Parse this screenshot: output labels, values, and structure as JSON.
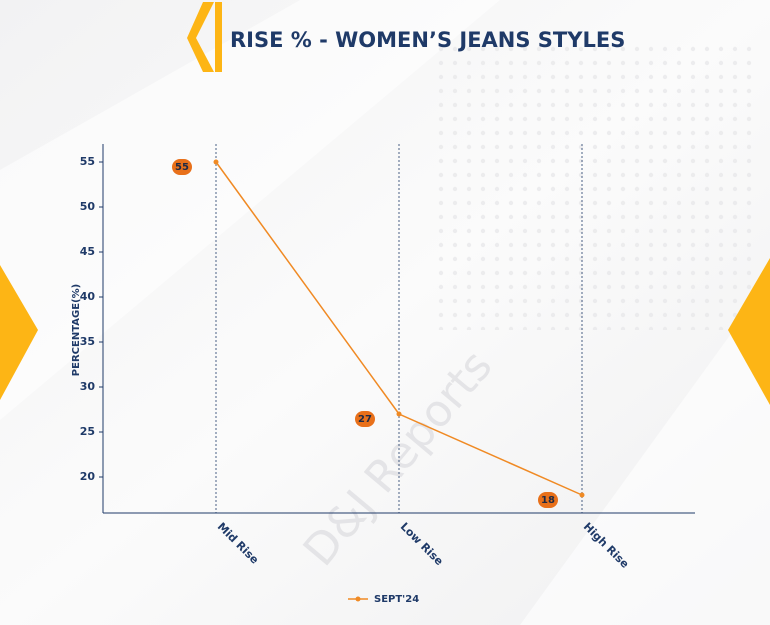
{
  "chart_data": {
    "type": "line",
    "title": "RISE % - WOMEN’S JEANS STYLES",
    "y_label": "PERCENTAGE(%)",
    "watermark": "D&J Reports",
    "categories": [
      "Mid Rise",
      "Low Rise",
      "High Rise"
    ],
    "series": [
      {
        "name": "SEPT'24",
        "color": "#f08a24",
        "values": [
          55,
          27,
          18
        ]
      }
    ],
    "ylim": [
      16,
      57
    ],
    "yticks": [
      20,
      25,
      30,
      35,
      40,
      45,
      50,
      55
    ],
    "grid": "x",
    "legend": "bottom"
  }
}
